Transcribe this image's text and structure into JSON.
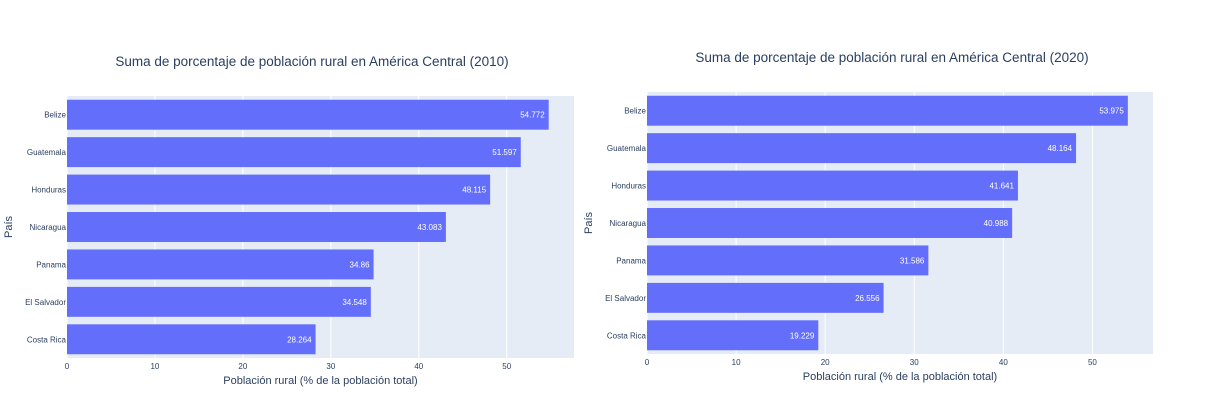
{
  "chart_data": [
    {
      "type": "bar",
      "orientation": "horizontal",
      "title": "Suma de porcentaje de población rural en América Central (2010)",
      "xlabel": "Población rural (% de la población total)",
      "ylabel": "País",
      "xlim": [
        0,
        57.65
      ],
      "xticks": [
        "0",
        "10",
        "20",
        "30",
        "40",
        "50"
      ],
      "categories": [
        "Belize",
        "Guatemala",
        "Honduras",
        "Nicaragua",
        "Panama",
        "El Salvador",
        "Costa Rica"
      ],
      "values": [
        54.772,
        51.597,
        48.115,
        43.083,
        34.86,
        34.548,
        28.264
      ],
      "value_labels": [
        "54.772",
        "51.597",
        "48.115",
        "43.083",
        "34.86",
        "34.548",
        "28.264"
      ],
      "bar_color": "#636efa",
      "plot_bg": "#e5ecf6",
      "grid": true
    },
    {
      "type": "bar",
      "orientation": "horizontal",
      "title": "Suma de porcentaje de población rural en América Central (2020)",
      "xlabel": "Población rural (% de la población total)",
      "ylabel": "País",
      "xlim": [
        0,
        56.8
      ],
      "xticks": [
        "0",
        "10",
        "20",
        "30",
        "40",
        "50"
      ],
      "categories": [
        "Belize",
        "Guatemala",
        "Honduras",
        "Nicaragua",
        "Panama",
        "El Salvador",
        "Costa Rica"
      ],
      "values": [
        53.975,
        48.164,
        41.641,
        40.988,
        31.586,
        26.556,
        19.229
      ],
      "value_labels": [
        "53.975",
        "48.164",
        "41.641",
        "40.988",
        "31.586",
        "26.556",
        "19.229"
      ],
      "bar_color": "#636efa",
      "plot_bg": "#e5ecf6",
      "grid": true
    }
  ]
}
